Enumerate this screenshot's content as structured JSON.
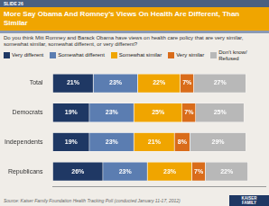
{
  "chart_data": {
    "type": "bar",
    "orientation": "horizontal",
    "stacked": true,
    "title": "More Say Obama And Romney’s Views On Health Are Different, Than Similar",
    "subtitle": "Do you think Mitt Romney and Barack Obama have views on health care policy that are very similar,\nsomewhat similar, somewhat different, or very different?",
    "annotations": [
      "SLIDE 26",
      "Source: Kaiser Family Foundation Health Tracking Poll (conducted January 11-17, 2012)",
      "KAISER\nFAMILY"
    ],
    "categories": [
      "Total",
      "Democrats",
      "Independents",
      "Republicans"
    ],
    "series": [
      {
        "name": "Very different",
        "color": "#1f3864",
        "values": [
          21,
          19,
          19,
          26
        ],
        "value_labels": [
          "21%",
          "19%",
          "19%",
          "26%"
        ]
      },
      {
        "name": "Somewhat different",
        "color": "#5b7db1",
        "values": [
          23,
          23,
          23,
          23
        ],
        "value_labels": [
          "23%",
          "23%",
          "23%",
          "23%"
        ]
      },
      {
        "name": "Somewhat similar",
        "color": "#f0a500",
        "values": [
          22,
          25,
          21,
          23
        ],
        "value_labels": [
          "22%",
          "25%",
          "21%",
          "23%"
        ]
      },
      {
        "name": "Very similar",
        "color": "#d96c1a",
        "values": [
          7,
          7,
          8,
          7
        ],
        "value_labels": [
          "7%",
          "7%",
          "8%",
          "7%"
        ]
      },
      {
        "name": "Don’t know/\nRefused",
        "color": "#b8b8b8",
        "values": [
          27,
          25,
          29,
          22
        ],
        "value_labels": [
          "27%",
          "25%",
          "29%",
          "22%"
        ]
      }
    ],
    "xlim": [
      0,
      110
    ],
    "grid": false,
    "legend": "top",
    "data_labels": true,
    "tick_labels": "y"
  }
}
